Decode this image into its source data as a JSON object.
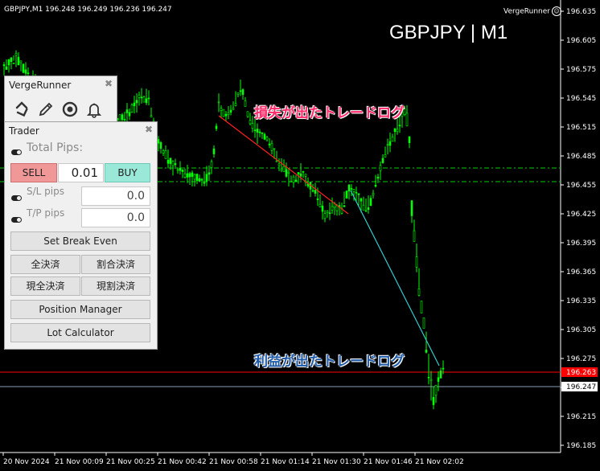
{
  "window": {
    "symbol_info": "GBPJPY,M1  196.248 196.249 196.236 196.247",
    "big_symbol": "GBPJPY | M1",
    "ea_name": "VergeRunner",
    "ea_smiley": "☺"
  },
  "price_axis": {
    "labels": [
      "196.635",
      "196.605",
      "196.575",
      "196.545",
      "196.515",
      "196.485",
      "196.455",
      "196.425",
      "196.395",
      "196.365",
      "196.335",
      "196.305",
      "196.275",
      "196.245",
      "196.215",
      "196.185"
    ],
    "red_line_price": "196.263",
    "current_price": "196.247"
  },
  "time_axis": {
    "labels": [
      "20 Nov 2024",
      "21 Nov 00:09",
      "21 Nov 00:25",
      "21 Nov 00:42",
      "21 Nov 00:58",
      "21 Nov 01:14",
      "21 Nov 01:30",
      "21 Nov 01:46",
      "21 Nov 02:02"
    ]
  },
  "annotations": {
    "loss": "損失が出たトレードログ",
    "profit": "利益が出たトレードログ"
  },
  "colors": {
    "candle": "#00ff00",
    "loss_line": "#ff2020",
    "profit_line": "#33cccc",
    "red_level": "#ff0000",
    "green_dash": "#00cc00"
  },
  "vergerunner_panel": {
    "title": "VergeRunner",
    "close": "✖",
    "icons": [
      "refresh-icon",
      "pencil-icon",
      "target-icon",
      "bell-icon"
    ]
  },
  "trader_panel": {
    "title": "Trader",
    "close": "✖",
    "total_pips_label": "Total Pips:",
    "sell_label": "SELL",
    "lot_value": "0.01",
    "buy_label": "BUY",
    "sl_label": "S/L pips",
    "sl_value": "0.0",
    "tp_label": "T/P pips",
    "tp_value": "0.0",
    "break_even": "Set Break Even",
    "close_all": "全決済",
    "close_partial": "割合決済",
    "close_all_current": "現全決済",
    "close_partial_current": "現割決済",
    "position_manager": "Position Manager",
    "lot_calculator": "Lot Calculator"
  }
}
